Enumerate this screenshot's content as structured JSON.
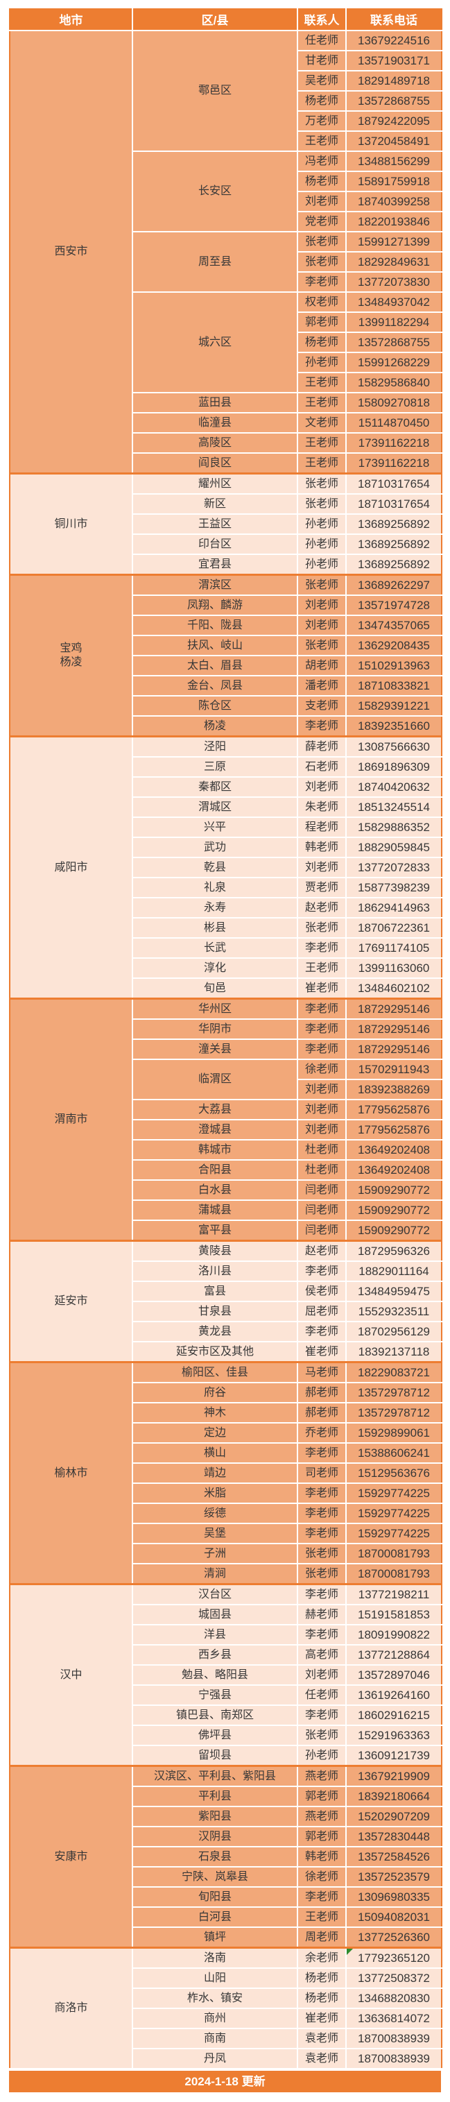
{
  "header": {
    "columns": [
      "地市",
      "区/县",
      "联系人",
      "联系电话"
    ]
  },
  "footer": {
    "updated": "2024-1-18  更新"
  },
  "colors": {
    "header_bg": "#ED7D31",
    "section_dark": "#F2A879",
    "section_light": "#FCE4D6",
    "separator": "#ED7D31",
    "text": "#373737",
    "note_marker": "#2E8B2E"
  },
  "cities": [
    {
      "name": "西安市",
      "districts": [
        {
          "name": "鄠邑区",
          "contacts": [
            {
              "person": "任老师",
              "phone": "13679224516"
            },
            {
              "person": "甘老师",
              "phone": "13571903171"
            },
            {
              "person": "吴老师",
              "phone": "18291489718"
            },
            {
              "person": "杨老师",
              "phone": "13572868755"
            },
            {
              "person": "万老师",
              "phone": "18792422095"
            },
            {
              "person": "王老师",
              "phone": "13720458491"
            }
          ]
        },
        {
          "name": "长安区",
          "contacts": [
            {
              "person": "冯老师",
              "phone": "13488156299"
            },
            {
              "person": "杨老师",
              "phone": "15891759918"
            },
            {
              "person": "刘老师",
              "phone": "18740399258"
            },
            {
              "person": "党老师",
              "phone": "18220193846"
            }
          ]
        },
        {
          "name": "周至县",
          "contacts": [
            {
              "person": "张老师",
              "phone": "15991271399"
            },
            {
              "person": "张老师",
              "phone": "18292849631"
            },
            {
              "person": "李老师",
              "phone": "13772073830"
            }
          ]
        },
        {
          "name": "城六区",
          "contacts": [
            {
              "person": "权老师",
              "phone": "13484937042"
            },
            {
              "person": "郭老师",
              "phone": "13991182294"
            },
            {
              "person": "杨老师",
              "phone": "13572868755"
            },
            {
              "person": "孙老师",
              "phone": "15991268229"
            },
            {
              "person": "王老师",
              "phone": "15829586840"
            }
          ]
        },
        {
          "name": "蓝田县",
          "contacts": [
            {
              "person": "王老师",
              "phone": "15809270818"
            }
          ]
        },
        {
          "name": "临潼县",
          "contacts": [
            {
              "person": "文老师",
              "phone": "15114870450"
            }
          ]
        },
        {
          "name": "高陵区",
          "contacts": [
            {
              "person": "王老师",
              "phone": "17391162218"
            }
          ]
        },
        {
          "name": "阎良区",
          "contacts": [
            {
              "person": "王老师",
              "phone": "17391162218"
            }
          ]
        }
      ]
    },
    {
      "name": "铜川市",
      "districts": [
        {
          "name": "耀州区",
          "contacts": [
            {
              "person": "张老师",
              "phone": "18710317654"
            }
          ]
        },
        {
          "name": "新区",
          "contacts": [
            {
              "person": "张老师",
              "phone": "18710317654"
            }
          ]
        },
        {
          "name": "王益区",
          "contacts": [
            {
              "person": "孙老师",
              "phone": "13689256892"
            }
          ]
        },
        {
          "name": "印台区",
          "contacts": [
            {
              "person": "孙老师",
              "phone": "13689256892"
            }
          ]
        },
        {
          "name": "宜君县",
          "contacts": [
            {
              "person": "孙老师",
              "phone": "13689256892"
            }
          ]
        }
      ]
    },
    {
      "name": "宝鸡\n杨凌",
      "districts": [
        {
          "name": "渭滨区",
          "contacts": [
            {
              "person": "张老师",
              "phone": "13689262297"
            }
          ]
        },
        {
          "name": "凤翔、麟游",
          "contacts": [
            {
              "person": "刘老师",
              "phone": "13571974728"
            }
          ]
        },
        {
          "name": "千阳、陇县",
          "contacts": [
            {
              "person": "刘老师",
              "phone": "13474357065"
            }
          ]
        },
        {
          "name": "扶风、岐山",
          "contacts": [
            {
              "person": "张老师",
              "phone": "13629208435"
            }
          ]
        },
        {
          "name": "太白、眉县",
          "contacts": [
            {
              "person": "胡老师",
              "phone": "15102913963"
            }
          ]
        },
        {
          "name": "金台、凤县",
          "contacts": [
            {
              "person": "潘老师",
              "phone": "18710833821"
            }
          ]
        },
        {
          "name": "陈仓区",
          "contacts": [
            {
              "person": "支老师",
              "phone": "15829391221"
            }
          ]
        },
        {
          "name": "杨凌",
          "contacts": [
            {
              "person": "李老师",
              "phone": "18392351660"
            }
          ]
        }
      ]
    },
    {
      "name": "咸阳市",
      "districts": [
        {
          "name": "泾阳",
          "contacts": [
            {
              "person": "薛老师",
              "phone": "13087566630"
            }
          ]
        },
        {
          "name": "三原",
          "contacts": [
            {
              "person": "石老师",
              "phone": "18691896309"
            }
          ]
        },
        {
          "name": "秦都区",
          "contacts": [
            {
              "person": "刘老师",
              "phone": "18740420632"
            }
          ]
        },
        {
          "name": "渭城区",
          "contacts": [
            {
              "person": "朱老师",
              "phone": "18513245514"
            }
          ]
        },
        {
          "name": "兴平",
          "contacts": [
            {
              "person": "程老师",
              "phone": "15829886352"
            }
          ]
        },
        {
          "name": "武功",
          "contacts": [
            {
              "person": "韩老师",
              "phone": "18829059845"
            }
          ]
        },
        {
          "name": "乾县",
          "contacts": [
            {
              "person": "刘老师",
              "phone": "13772072833"
            }
          ]
        },
        {
          "name": "礼泉",
          "contacts": [
            {
              "person": "贾老师",
              "phone": "15877398239"
            }
          ]
        },
        {
          "name": "永寿",
          "contacts": [
            {
              "person": "赵老师",
              "phone": "18629414963"
            }
          ]
        },
        {
          "name": "彬县",
          "contacts": [
            {
              "person": "张老师",
              "phone": "18706722361"
            }
          ]
        },
        {
          "name": "长武",
          "contacts": [
            {
              "person": "李老师",
              "phone": "17691174105"
            }
          ]
        },
        {
          "name": "淳化",
          "contacts": [
            {
              "person": "王老师",
              "phone": "13991163060"
            }
          ]
        },
        {
          "name": "旬邑",
          "contacts": [
            {
              "person": "崔老师",
              "phone": "13484602102"
            }
          ]
        }
      ]
    },
    {
      "name": "渭南市",
      "districts": [
        {
          "name": "华州区",
          "contacts": [
            {
              "person": "李老师",
              "phone": "18729295146"
            }
          ]
        },
        {
          "name": "华阴市",
          "contacts": [
            {
              "person": "李老师",
              "phone": "18729295146"
            }
          ]
        },
        {
          "name": "潼关县",
          "contacts": [
            {
              "person": "李老师",
              "phone": "18729295146"
            }
          ]
        },
        {
          "name": "临渭区",
          "contacts": [
            {
              "person": "徐老师",
              "phone": "15702911943"
            },
            {
              "person": "刘老师",
              "phone": "18392388269"
            }
          ]
        },
        {
          "name": "大荔县",
          "contacts": [
            {
              "person": "刘老师",
              "phone": "17795625876"
            }
          ]
        },
        {
          "name": "澄城县",
          "contacts": [
            {
              "person": "刘老师",
              "phone": "17795625876"
            }
          ]
        },
        {
          "name": "韩城市",
          "contacts": [
            {
              "person": "杜老师",
              "phone": "13649202408"
            }
          ]
        },
        {
          "name": "合阳县",
          "contacts": [
            {
              "person": "杜老师",
              "phone": "13649202408"
            }
          ]
        },
        {
          "name": "白水县",
          "contacts": [
            {
              "person": "闫老师",
              "phone": "15909290772"
            }
          ]
        },
        {
          "name": "蒲城县",
          "contacts": [
            {
              "person": "闫老师",
              "phone": "15909290772"
            }
          ]
        },
        {
          "name": "富平县",
          "contacts": [
            {
              "person": "闫老师",
              "phone": "15909290772"
            }
          ]
        }
      ]
    },
    {
      "name": "延安市",
      "districts": [
        {
          "name": "黄陵县",
          "contacts": [
            {
              "person": "赵老师",
              "phone": "18729596326"
            }
          ]
        },
        {
          "name": "洛川县",
          "contacts": [
            {
              "person": "李老师",
              "phone": "18829011164"
            }
          ]
        },
        {
          "name": "富县",
          "contacts": [
            {
              "person": "侯老师",
              "phone": "13484959475"
            }
          ]
        },
        {
          "name": "甘泉县",
          "contacts": [
            {
              "person": "屈老师",
              "phone": "15529323511"
            }
          ]
        },
        {
          "name": "黄龙县",
          "contacts": [
            {
              "person": "李老师",
              "phone": "18702956129"
            }
          ]
        },
        {
          "name": "延安市区及其他",
          "contacts": [
            {
              "person": "崔老师",
              "phone": "18392137118"
            }
          ]
        }
      ]
    },
    {
      "name": "榆林市",
      "districts": [
        {
          "name": "榆阳区、佳县",
          "contacts": [
            {
              "person": "马老师",
              "phone": "18229083721"
            }
          ]
        },
        {
          "name": "府谷",
          "contacts": [
            {
              "person": "郝老师",
              "phone": "13572978712"
            }
          ]
        },
        {
          "name": "神木",
          "contacts": [
            {
              "person": "郝老师",
              "phone": "13572978712"
            }
          ]
        },
        {
          "name": "定边",
          "contacts": [
            {
              "person": "乔老师",
              "phone": "15929899061"
            }
          ]
        },
        {
          "name": "横山",
          "contacts": [
            {
              "person": "李老师",
              "phone": "15388606241"
            }
          ]
        },
        {
          "name": "靖边",
          "contacts": [
            {
              "person": "司老师",
              "phone": "15129563676"
            }
          ]
        },
        {
          "name": "米脂",
          "contacts": [
            {
              "person": "李老师",
              "phone": "15929774225"
            }
          ]
        },
        {
          "name": "绥德",
          "contacts": [
            {
              "person": "李老师",
              "phone": "15929774225"
            }
          ]
        },
        {
          "name": "吴堡",
          "contacts": [
            {
              "person": "李老师",
              "phone": "15929774225"
            }
          ]
        },
        {
          "name": "子洲",
          "contacts": [
            {
              "person": "张老师",
              "phone": "18700081793"
            }
          ]
        },
        {
          "name": "清涧",
          "contacts": [
            {
              "person": "张老师",
              "phone": "18700081793"
            }
          ]
        }
      ]
    },
    {
      "name": "汉中",
      "districts": [
        {
          "name": "汉台区",
          "contacts": [
            {
              "person": "李老师",
              "phone": "13772198211"
            }
          ]
        },
        {
          "name": "城固县",
          "contacts": [
            {
              "person": "赫老师",
              "phone": "15191581853"
            }
          ]
        },
        {
          "name": "洋县",
          "contacts": [
            {
              "person": "李老师",
              "phone": "18091990822"
            }
          ]
        },
        {
          "name": "西乡县",
          "contacts": [
            {
              "person": "高老师",
              "phone": "13772128864"
            }
          ]
        },
        {
          "name": "勉县、略阳县",
          "contacts": [
            {
              "person": "刘老师",
              "phone": "13572897046"
            }
          ]
        },
        {
          "name": "宁强县",
          "contacts": [
            {
              "person": "任老师",
              "phone": "13619264160"
            }
          ]
        },
        {
          "name": "镇巴县、南郑区",
          "contacts": [
            {
              "person": "李老师",
              "phone": "18602916215"
            }
          ]
        },
        {
          "name": "佛坪县",
          "contacts": [
            {
              "person": "张老师",
              "phone": "15291963363"
            }
          ]
        },
        {
          "name": "留坝县",
          "contacts": [
            {
              "person": "孙老师",
              "phone": "13609121739"
            }
          ]
        }
      ]
    },
    {
      "name": "安康市",
      "districts": [
        {
          "name": "汉滨区、平利县、紫阳县",
          "contacts": [
            {
              "person": "燕老师",
              "phone": "13679219909"
            }
          ]
        },
        {
          "name": "平利县",
          "contacts": [
            {
              "person": "郭老师",
              "phone": "18392180664"
            }
          ]
        },
        {
          "name": "紫阳县",
          "contacts": [
            {
              "person": "燕老师",
              "phone": "15202907209"
            }
          ]
        },
        {
          "name": "汉阴县",
          "contacts": [
            {
              "person": "郭老师",
              "phone": "13572830448"
            }
          ]
        },
        {
          "name": "石泉县",
          "contacts": [
            {
              "person": "韩老师",
              "phone": "13572584526"
            }
          ]
        },
        {
          "name": "宁陕、岚皋县",
          "contacts": [
            {
              "person": "徐老师",
              "phone": "13572523579"
            }
          ]
        },
        {
          "name": "旬阳县",
          "contacts": [
            {
              "person": "李老师",
              "phone": "13096980335"
            }
          ]
        },
        {
          "name": "白河县",
          "contacts": [
            {
              "person": "王老师",
              "phone": "15094082031"
            }
          ]
        },
        {
          "name": "镇坪",
          "contacts": [
            {
              "person": "周老师",
              "phone": "13772526360"
            }
          ]
        }
      ]
    },
    {
      "name": "商洛市",
      "districts": [
        {
          "name": "洛南",
          "contacts": [
            {
              "person": "余老师",
              "phone": "17792365120",
              "note_marker": true
            }
          ]
        },
        {
          "name": "山阳",
          "contacts": [
            {
              "person": "杨老师",
              "phone": "13772508372"
            }
          ]
        },
        {
          "name": "柞水、镇安",
          "contacts": [
            {
              "person": "杨老师",
              "phone": "13468820830"
            }
          ]
        },
        {
          "name": "商州",
          "contacts": [
            {
              "person": "崔老师",
              "phone": "13636814072"
            }
          ]
        },
        {
          "name": "商南",
          "contacts": [
            {
              "person": "袁老师",
              "phone": "18700838939"
            }
          ]
        },
        {
          "name": "丹凤",
          "contacts": [
            {
              "person": "袁老师",
              "phone": "18700838939"
            }
          ]
        }
      ]
    }
  ]
}
